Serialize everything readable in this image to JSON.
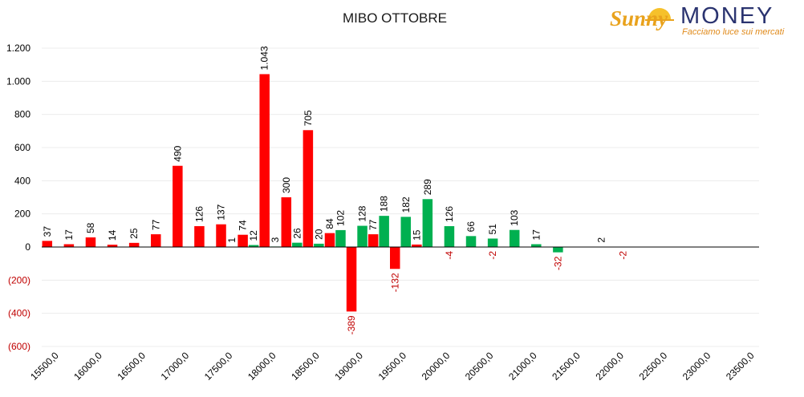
{
  "title": "MIBO OTTOBRE",
  "logo": {
    "script": "Sunny",
    "word": "MONEY",
    "tagline": "Facciamo luce sui mercati"
  },
  "colors": {
    "call": "#ff0000",
    "put": "#00b050",
    "negative_label": "#c00000",
    "axis": "#000000",
    "grid": "#ececec"
  },
  "chart_data": {
    "type": "bar",
    "title": "MIBO OTTOBRE",
    "xlabel": "",
    "ylabel": "",
    "ylim": [
      -600,
      1200
    ],
    "yticks": [
      {
        "value": 1200,
        "label": "1.200"
      },
      {
        "value": 1000,
        "label": "1.000"
      },
      {
        "value": 800,
        "label": "800"
      },
      {
        "value": 600,
        "label": "600"
      },
      {
        "value": 400,
        "label": "400"
      },
      {
        "value": 200,
        "label": "200"
      },
      {
        "value": 0,
        "label": "0"
      },
      {
        "value": -200,
        "label": "(200)"
      },
      {
        "value": -400,
        "label": "(400)"
      },
      {
        "value": -600,
        "label": "(600)"
      }
    ],
    "grid": true,
    "legend": "none",
    "categories": [
      15500,
      15750,
      16000,
      16250,
      16500,
      16750,
      17000,
      17250,
      17500,
      17750,
      18000,
      18250,
      18500,
      18750,
      19000,
      19250,
      19500,
      19750,
      20000,
      20250,
      20500,
      20750,
      21000,
      21250,
      21500,
      21750,
      22000,
      22250,
      22500,
      22750,
      23000,
      23250,
      23500
    ],
    "tick_labels": [
      {
        "value": 15500,
        "label": "15500,0"
      },
      {
        "value": 16000,
        "label": "16000,0"
      },
      {
        "value": 16500,
        "label": "16500,0"
      },
      {
        "value": 17000,
        "label": "17000,0"
      },
      {
        "value": 17500,
        "label": "17500,0"
      },
      {
        "value": 18000,
        "label": "18000,0"
      },
      {
        "value": 18500,
        "label": "18500,0"
      },
      {
        "value": 19000,
        "label": "19000,0"
      },
      {
        "value": 19500,
        "label": "19500,0"
      },
      {
        "value": 20000,
        "label": "20000,0"
      },
      {
        "value": 20500,
        "label": "20500,0"
      },
      {
        "value": 21000,
        "label": "21000,0"
      },
      {
        "value": 21500,
        "label": "21500,0"
      },
      {
        "value": 22000,
        "label": "22000,0"
      },
      {
        "value": 22500,
        "label": "22500,0"
      },
      {
        "value": 23000,
        "label": "23000,0"
      },
      {
        "value": 23500,
        "label": "23500,0"
      }
    ],
    "series": [
      {
        "color": "#ff0000",
        "values": [
          37,
          17,
          58,
          14,
          25,
          77,
          490,
          126,
          137,
          74,
          1043,
          300,
          705,
          84,
          -389,
          77,
          -132,
          15,
          null,
          null,
          null,
          null,
          null,
          null,
          null,
          null,
          null,
          null,
          null,
          null,
          null,
          null,
          null
        ],
        "labels": [
          "37",
          "17",
          "58",
          "14",
          "25",
          "77",
          "490",
          "126",
          "137",
          "74",
          "1.043",
          "300",
          "705",
          "84",
          "-389",
          "77",
          "-132",
          "15",
          null,
          null,
          null,
          null,
          null,
          null,
          null,
          null,
          null,
          null,
          null,
          null,
          null,
          null,
          null
        ]
      },
      {
        "color": "#00b050",
        "values": [
          null,
          null,
          null,
          null,
          null,
          null,
          null,
          null,
          1,
          12,
          3,
          26,
          20,
          102,
          128,
          188,
          182,
          289,
          126,
          66,
          51,
          103,
          17,
          -32,
          null,
          2,
          null,
          null,
          null,
          null,
          null,
          null,
          null
        ],
        "labels": [
          null,
          null,
          null,
          null,
          null,
          null,
          null,
          null,
          "1",
          "12",
          "3",
          "26",
          "20",
          "102",
          "128",
          "188",
          "182",
          "289",
          "126",
          "66",
          "51",
          "103",
          "17",
          "-32",
          null,
          "2",
          null,
          null,
          null,
          null,
          null,
          null,
          null
        ]
      }
    ],
    "floating_labels": [
      {
        "x": 20000,
        "label": "-4"
      },
      {
        "x": 20500,
        "label": "-2"
      },
      {
        "x": 22000,
        "label": "-2"
      }
    ]
  }
}
